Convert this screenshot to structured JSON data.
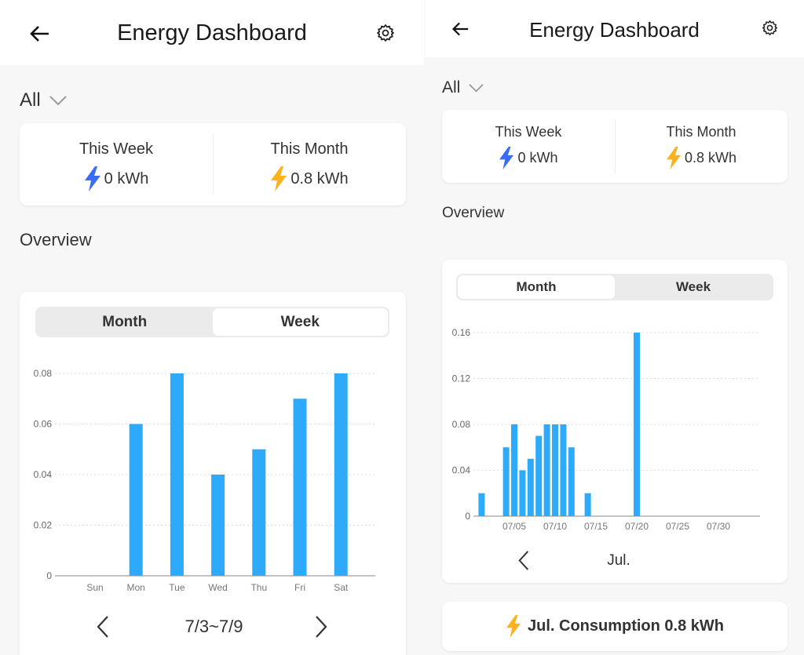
{
  "colors": {
    "bar": "#2eaafa",
    "bolt_week": "#3b6cf6",
    "bolt_month": "#fbb21c",
    "background": "#f7f7f7"
  },
  "left": {
    "header": {
      "title": "Energy Dashboard",
      "back_icon": "arrow-left",
      "settings_icon": "gear"
    },
    "filter": {
      "selected": "All"
    },
    "summary": {
      "week_label": "This Week",
      "week_value": "0 kWh",
      "month_label": "This Month",
      "month_value": "0.8 kWh"
    },
    "overview_label": "Overview",
    "tabs": [
      {
        "label": "Month",
        "active": false
      },
      {
        "label": "Week",
        "active": true
      }
    ],
    "nav": {
      "range": "7/3~7/9"
    }
  },
  "right": {
    "header": {
      "title": "Energy Dashboard",
      "back_icon": "arrow-left",
      "settings_icon": "gear"
    },
    "filter": {
      "selected": "All"
    },
    "summary": {
      "week_label": "This Week",
      "week_value": "0 kWh",
      "month_label": "This Month",
      "month_value": "0.8 kWh"
    },
    "overview_label": "Overview",
    "tabs": [
      {
        "label": "Month",
        "active": true
      },
      {
        "label": "Week",
        "active": false
      }
    ],
    "nav": {
      "range": "Jul."
    },
    "consumption": "Jul. Consumption 0.8 kWh"
  },
  "chart_data": [
    {
      "type": "bar",
      "categories": [
        "Sun",
        "Mon",
        "Tue",
        "Wed",
        "Thu",
        "Fri",
        "Sat"
      ],
      "values": [
        0,
        0.06,
        0.08,
        0.04,
        0.05,
        0.07,
        0.08
      ],
      "yticks": [
        "0",
        "0.02",
        "0.04",
        "0.06",
        "0.08"
      ],
      "ylim": [
        0,
        0.08
      ],
      "grid": true
    },
    {
      "type": "bar",
      "x": [
        1,
        2,
        3,
        4,
        5,
        6,
        7,
        8,
        9,
        10,
        11,
        12,
        13,
        14,
        15,
        16,
        17,
        18,
        19,
        20,
        21,
        22,
        23,
        24,
        25,
        26,
        27,
        28,
        29,
        30,
        31
      ],
      "values": [
        0.02,
        0,
        0,
        0.06,
        0.08,
        0.04,
        0.05,
        0.07,
        0.08,
        0.08,
        0.08,
        0.06,
        0,
        0.02,
        0,
        0,
        0,
        0,
        0,
        0.16,
        0,
        0,
        0,
        0,
        0,
        0,
        0,
        0,
        0,
        0,
        0
      ],
      "xticks": [
        {
          "day": 5,
          "label": "07/05"
        },
        {
          "day": 10,
          "label": "07/10"
        },
        {
          "day": 15,
          "label": "07/15"
        },
        {
          "day": 20,
          "label": "07/20"
        },
        {
          "day": 25,
          "label": "07/25"
        },
        {
          "day": 30,
          "label": "07/30"
        }
      ],
      "yticks": [
        "0",
        "0.04",
        "0.08",
        "0.12",
        "0.16"
      ],
      "ylim": [
        0,
        0.16
      ],
      "grid": true
    }
  ]
}
